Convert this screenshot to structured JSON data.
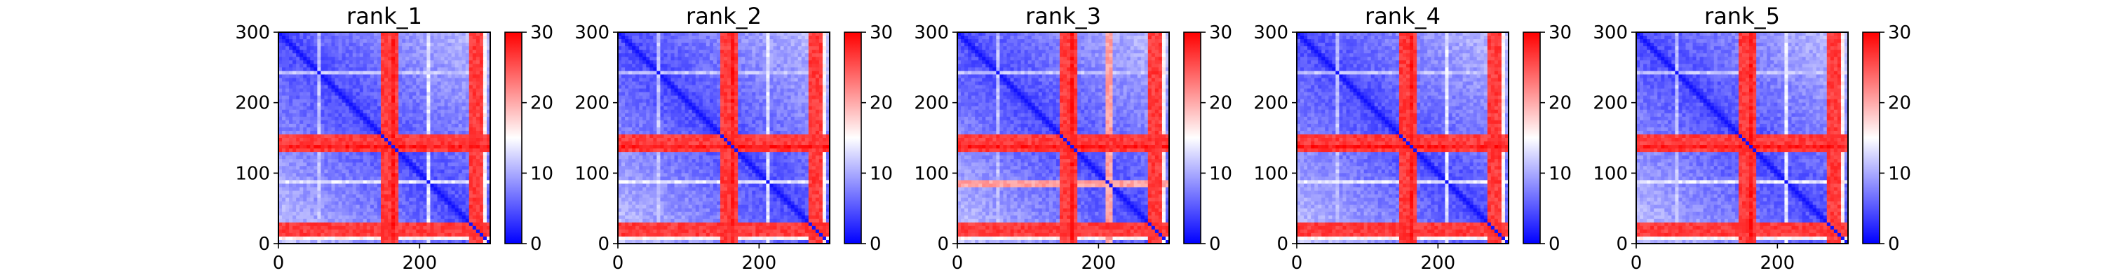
{
  "chart_data": {
    "type": "heatmap",
    "shared": {
      "x_ticks": [
        0,
        200
      ],
      "y_ticks": [
        0,
        100,
        200,
        300
      ],
      "xlim": [
        0,
        300
      ],
      "ylim": [
        300,
        0
      ],
      "colorbar_range": [
        0,
        30
      ],
      "colorbar_ticks": [
        0,
        10,
        20,
        30
      ],
      "colormap": "bwr",
      "colors": {
        "low": "#0000ff",
        "mid": "#ffffff",
        "high": "#ff0000"
      },
      "grid": false
    },
    "panels": [
      {
        "title": "rank_1",
        "bands": [
          {
            "from": 145,
            "to": 172,
            "value": 28
          },
          {
            "from": 158,
            "to": 164,
            "value": 30
          },
          {
            "from": 270,
            "to": 288,
            "value": 28
          },
          {
            "from": 210,
            "to": 216,
            "value": 15
          },
          {
            "from": 55,
            "to": 60,
            "value": 13
          },
          {
            "from": 292,
            "to": 297,
            "value": 17
          }
        ]
      },
      {
        "title": "rank_2",
        "bands": [
          {
            "from": 145,
            "to": 172,
            "value": 28
          },
          {
            "from": 158,
            "to": 164,
            "value": 30
          },
          {
            "from": 270,
            "to": 288,
            "value": 28
          },
          {
            "from": 210,
            "to": 216,
            "value": 15
          },
          {
            "from": 55,
            "to": 60,
            "value": 13
          },
          {
            "from": 292,
            "to": 297,
            "value": 17
          }
        ]
      },
      {
        "title": "rank_3",
        "bands": [
          {
            "from": 145,
            "to": 172,
            "value": 28
          },
          {
            "from": 158,
            "to": 164,
            "value": 30
          },
          {
            "from": 270,
            "to": 288,
            "value": 28
          },
          {
            "from": 210,
            "to": 222,
            "value": 22
          },
          {
            "from": 55,
            "to": 60,
            "value": 13
          },
          {
            "from": 292,
            "to": 297,
            "value": 17
          }
        ]
      },
      {
        "title": "rank_4",
        "bands": [
          {
            "from": 145,
            "to": 172,
            "value": 28
          },
          {
            "from": 158,
            "to": 164,
            "value": 30
          },
          {
            "from": 270,
            "to": 288,
            "value": 28
          },
          {
            "from": 210,
            "to": 216,
            "value": 15
          },
          {
            "from": 55,
            "to": 60,
            "value": 13
          },
          {
            "from": 292,
            "to": 297,
            "value": 17
          }
        ]
      },
      {
        "title": "rank_5",
        "bands": [
          {
            "from": 145,
            "to": 172,
            "value": 28
          },
          {
            "from": 158,
            "to": 164,
            "value": 30
          },
          {
            "from": 270,
            "to": 288,
            "value": 28
          },
          {
            "from": 210,
            "to": 216,
            "value": 15
          },
          {
            "from": 55,
            "to": 60,
            "value": 13
          },
          {
            "from": 292,
            "to": 297,
            "value": 17
          }
        ]
      }
    ]
  }
}
